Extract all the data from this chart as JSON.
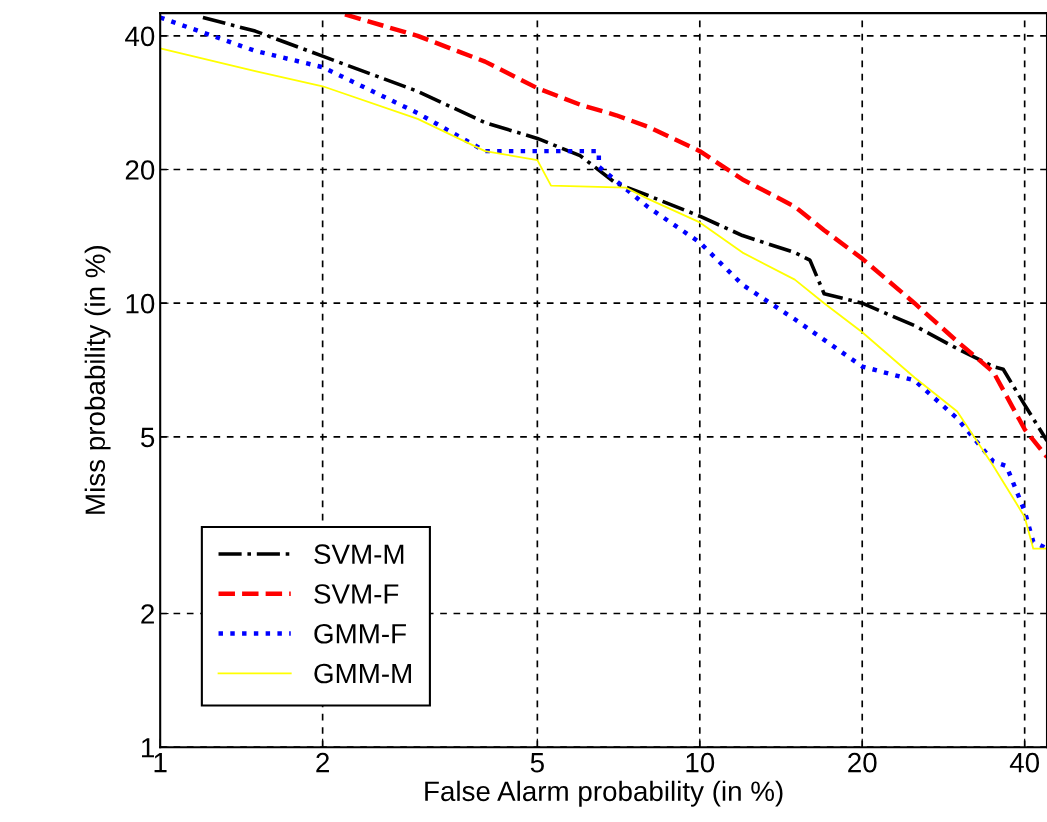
{
  "chart_data": {
    "type": "line",
    "xlabel": "False Alarm probability (in %)",
    "ylabel": "Miss probability (in %)",
    "xlim": [
      1,
      44
    ],
    "ylim": [
      1,
      45
    ],
    "xticks": [
      1,
      2,
      5,
      10,
      20,
      40
    ],
    "yticks": [
      1,
      2,
      5,
      10,
      20,
      40
    ],
    "grid": true,
    "legend": "bottom left",
    "log": "xy",
    "series": [
      {
        "name": "SVM-M",
        "color": "#000000",
        "line_style": "dashdot",
        "x": [
          1.2,
          1.5,
          2,
          3,
          4,
          5,
          6,
          7,
          8,
          10,
          12,
          15,
          16,
          17,
          20,
          25,
          30,
          35,
          36.5,
          40,
          44
        ],
        "values": [
          44,
          41,
          36,
          30,
          25.5,
          23.5,
          21.5,
          18.6,
          17.5,
          15.7,
          14.2,
          13,
          12.5,
          10.5,
          10,
          8.9,
          7.9,
          7.2,
          7.1,
          5.9,
          4.9
        ]
      },
      {
        "name": "SVM-F",
        "color": "#ff0000",
        "line_style": "dashed",
        "x": [
          2.2,
          3,
          4,
          5,
          6,
          7,
          8,
          10,
          12,
          15,
          17,
          20,
          25,
          30,
          35,
          40,
          44
        ],
        "values": [
          44.7,
          40,
          35,
          30.5,
          28,
          26.5,
          25,
          22,
          19,
          16.5,
          14.6,
          12.6,
          10,
          8.2,
          7,
          5.2,
          4.5
        ]
      },
      {
        "name": "GMM-F",
        "color": "#0000ff",
        "line_style": "dotted",
        "x": [
          1,
          1.5,
          2,
          3,
          4,
          5,
          6.5,
          6.5,
          8,
          10,
          12,
          15,
          20,
          25,
          30,
          35,
          37,
          40,
          41.5,
          44
        ],
        "values": [
          44,
          37,
          34,
          26.8,
          22,
          22,
          22,
          20.3,
          16.5,
          13.7,
          11,
          9.2,
          7.2,
          6.7,
          5.5,
          4.4,
          4.3,
          3.4,
          2.9,
          2.8
        ]
      },
      {
        "name": "GMM-M",
        "color": "#ffff00",
        "line_style": "solid",
        "x": [
          1,
          1.5,
          2,
          3,
          4,
          5,
          5.3,
          7.3,
          8,
          10,
          12,
          15,
          17,
          20,
          25,
          30,
          35,
          40,
          41.5,
          44
        ],
        "values": [
          37.5,
          33.3,
          30.8,
          26,
          22,
          21,
          18.4,
          18.2,
          17.2,
          15.2,
          13,
          11.3,
          10,
          8.6,
          6.8,
          5.7,
          4.3,
          3.3,
          2.8,
          2.8
        ]
      }
    ]
  }
}
